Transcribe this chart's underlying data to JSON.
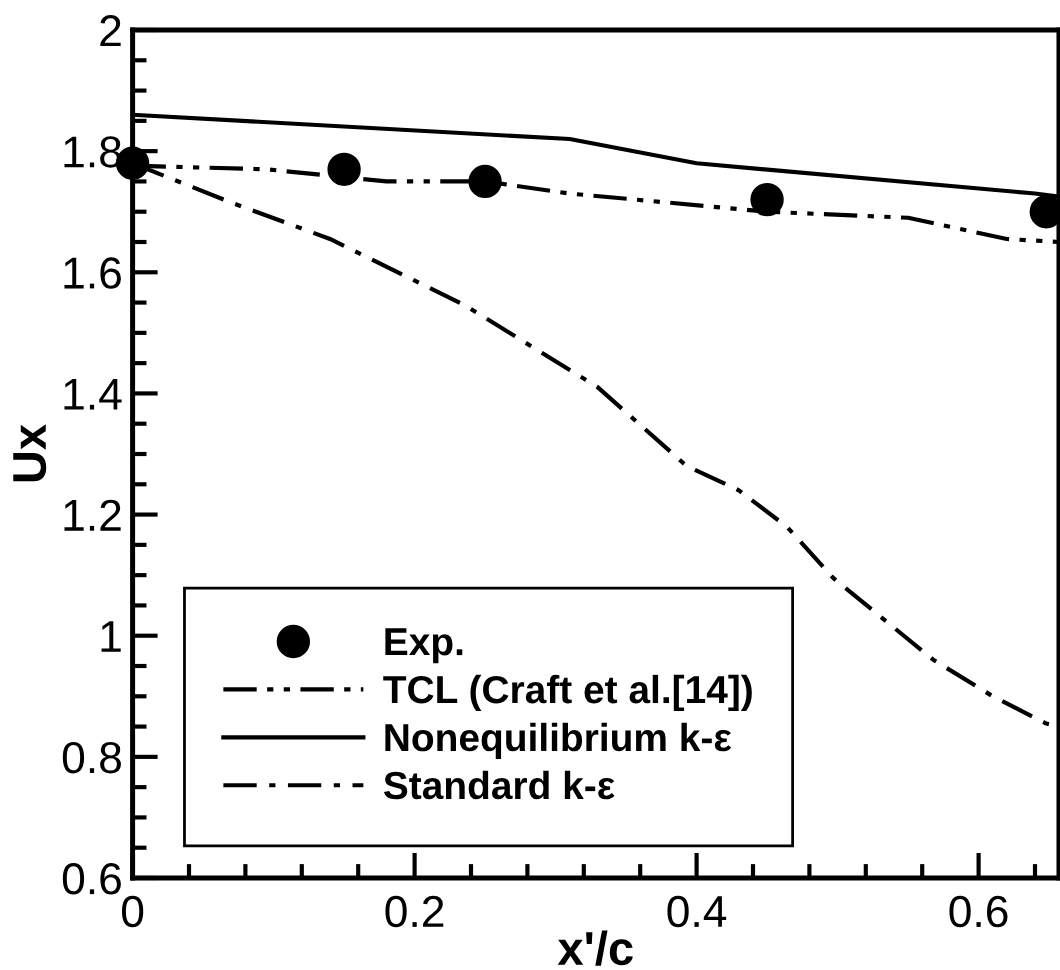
{
  "chart_data": {
    "type": "line",
    "xlabel": "x'/c",
    "ylabel": "Ux",
    "xlim": [
      0,
      0.657
    ],
    "ylim": [
      0.6,
      2
    ],
    "xticks": [
      0,
      0.2,
      0.4,
      0.6
    ],
    "yticks": [
      0.6,
      0.8,
      1,
      1.2,
      1.4,
      1.6,
      1.8,
      2
    ],
    "legend": "bottom left",
    "grid": false,
    "series": [
      {
        "name": "Exp.",
        "type": "scatter",
        "marker": "circle",
        "color": "#000000",
        "x": [
          0,
          0.15,
          0.25,
          0.45,
          0.648
        ],
        "values": [
          1.78,
          1.77,
          1.75,
          1.72,
          1.7
        ]
      },
      {
        "name": "TCL (Craft et al.[14])",
        "line_style": "dashdotdot",
        "color": "#000000",
        "x": [
          0,
          0.095,
          0.18,
          0.25,
          0.31,
          0.45,
          0.55,
          0.62,
          0.657
        ],
        "values": [
          1.776,
          1.77,
          1.75,
          1.75,
          1.73,
          1.7,
          1.69,
          1.655,
          1.65
        ]
      },
      {
        "name": "Nonequilibrium k-ε",
        "line_style": "solid",
        "color": "#000000",
        "x": [
          0,
          0.31,
          0.4,
          0.64,
          0.657
        ],
        "values": [
          1.86,
          1.82,
          1.78,
          1.73,
          1.725
        ]
      },
      {
        "name": "Standard k-ε",
        "line_style": "dashdot",
        "color": "#000000",
        "x": [
          0,
          0.07,
          0.14,
          0.236,
          0.33,
          0.393,
          0.43,
          0.464,
          0.497,
          0.568,
          0.61,
          0.648,
          0.657
        ],
        "values": [
          1.78,
          1.715,
          1.655,
          1.545,
          1.41,
          1.28,
          1.24,
          1.18,
          1.095,
          0.96,
          0.9,
          0.855,
          0.85
        ]
      }
    ]
  }
}
